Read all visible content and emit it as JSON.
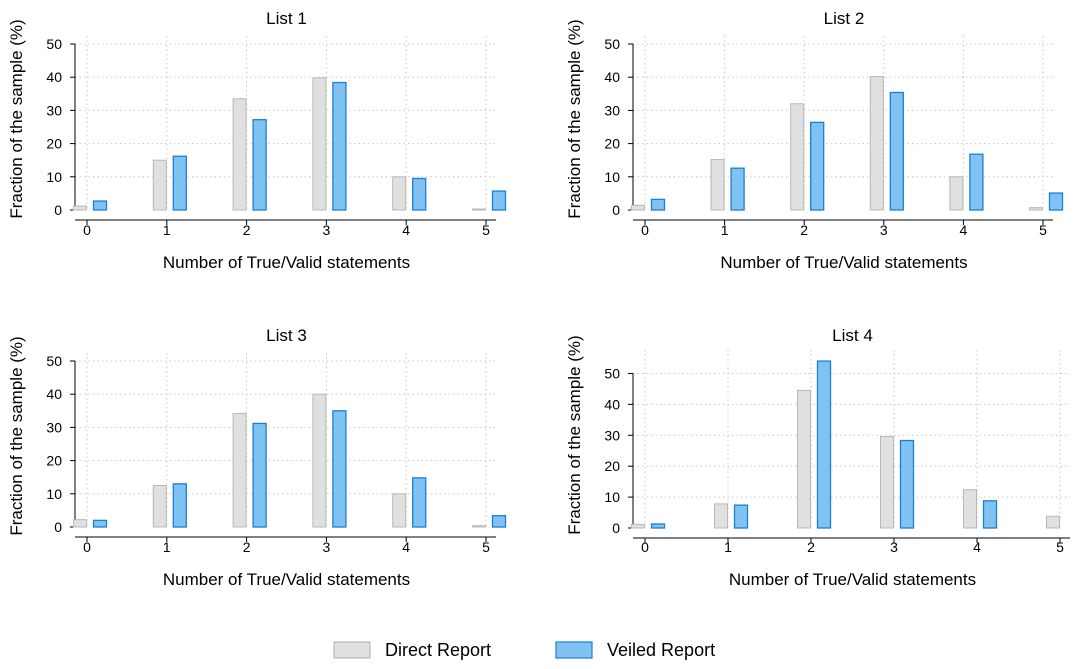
{
  "colors": {
    "direct_fill": "#e0e0e0",
    "direct_stroke": "#b8b8b8",
    "veiled_fill": "#80c2f2",
    "veiled_stroke": "#1a7fd6",
    "grid": "#c8c8c8",
    "axis": "#000000"
  },
  "legend": {
    "direct_label": "Direct Report",
    "veiled_label": "Veiled Report",
    "placement": "bottom-center"
  },
  "chart_data": [
    {
      "type": "bar",
      "title": "List 1",
      "xlabel": "Number of True/Valid statements",
      "ylabel": "Fraction of the sample (%)",
      "categories": [
        0,
        1,
        2,
        3,
        4,
        5
      ],
      "ylim": [
        0,
        50
      ],
      "yticks": [
        0,
        10,
        20,
        30,
        40,
        50
      ],
      "grid": true,
      "series": [
        {
          "name": "Direct Report",
          "values": [
            1.2,
            15,
            33.5,
            39.8,
            10,
            0.3
          ]
        },
        {
          "name": "Veiled Report",
          "values": [
            2.7,
            16.2,
            27.2,
            38.4,
            9.5,
            5.7
          ]
        }
      ]
    },
    {
      "type": "bar",
      "title": "List 2",
      "xlabel": "Number of True/Valid statements",
      "ylabel": "Fraction of the sample (%)",
      "categories": [
        0,
        1,
        2,
        3,
        4,
        5
      ],
      "ylim": [
        0,
        50
      ],
      "yticks": [
        0,
        10,
        20,
        30,
        40,
        50
      ],
      "grid": true,
      "series": [
        {
          "name": "Direct Report",
          "values": [
            1.4,
            15.2,
            32,
            40.2,
            10,
            0.7
          ]
        },
        {
          "name": "Veiled Report",
          "values": [
            3.2,
            12.6,
            26.4,
            35.4,
            16.8,
            5.1
          ]
        }
      ]
    },
    {
      "type": "bar",
      "title": "List 3",
      "xlabel": "Number of True/Valid statements",
      "ylabel": "Fraction of the sample (%)",
      "categories": [
        0,
        1,
        2,
        3,
        4,
        5
      ],
      "ylim": [
        0,
        50
      ],
      "yticks": [
        0,
        10,
        20,
        30,
        40,
        50
      ],
      "grid": true,
      "series": [
        {
          "name": "Direct Report",
          "values": [
            2.2,
            12.5,
            34.2,
            40,
            10,
            0.4
          ]
        },
        {
          "name": "Veiled Report",
          "values": [
            2,
            13,
            31.2,
            35,
            14.8,
            3.4
          ]
        }
      ]
    },
    {
      "type": "bar",
      "title": "List 4",
      "xlabel": "Number of True/Valid statements",
      "ylabel": "Fraction of the sample (%)",
      "categories": [
        0,
        1,
        2,
        3,
        4,
        5
      ],
      "ylim": [
        0,
        55
      ],
      "yticks": [
        0,
        10,
        20,
        30,
        40,
        50
      ],
      "grid": true,
      "series": [
        {
          "name": "Direct Report",
          "values": [
            1.2,
            7.8,
            44.5,
            29.6,
            12.4,
            3.8
          ]
        },
        {
          "name": "Veiled Report",
          "values": [
            1.3,
            7.4,
            54,
            28.3,
            8.8,
            0
          ]
        }
      ]
    }
  ]
}
